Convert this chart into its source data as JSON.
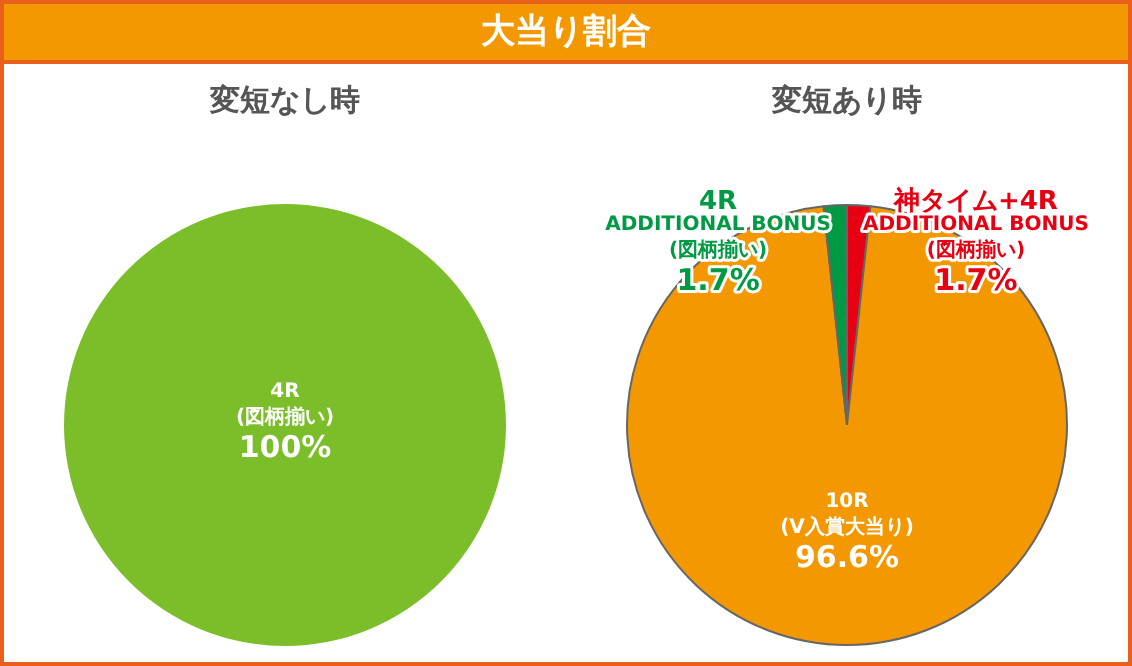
{
  "chart_data": [
    {
      "type": "other",
      "title": "大当り割合"
    },
    {
      "type": "pie",
      "title": "変短なし時",
      "categories": [
        "4R\n(図柄揃い)"
      ],
      "values": [
        100
      ],
      "colors": [
        "#7cbd2a"
      ],
      "value_labels": [
        "100%"
      ],
      "legend": false
    },
    {
      "type": "pie",
      "title": "変短あり時",
      "categories": [
        "神タイム+4R\nADDITIONAL BONUS\n(図柄揃い)",
        "10R\n(V入賞大当り)",
        "4R\nADDITIONAL BONUS\n(図柄揃い)"
      ],
      "values": [
        1.7,
        96.6,
        1.7
      ],
      "colors": [
        "#e60012",
        "#f39800",
        "#009944"
      ],
      "value_labels": [
        "1.7%",
        "96.6%",
        "1.7%"
      ],
      "legend": false
    }
  ]
}
